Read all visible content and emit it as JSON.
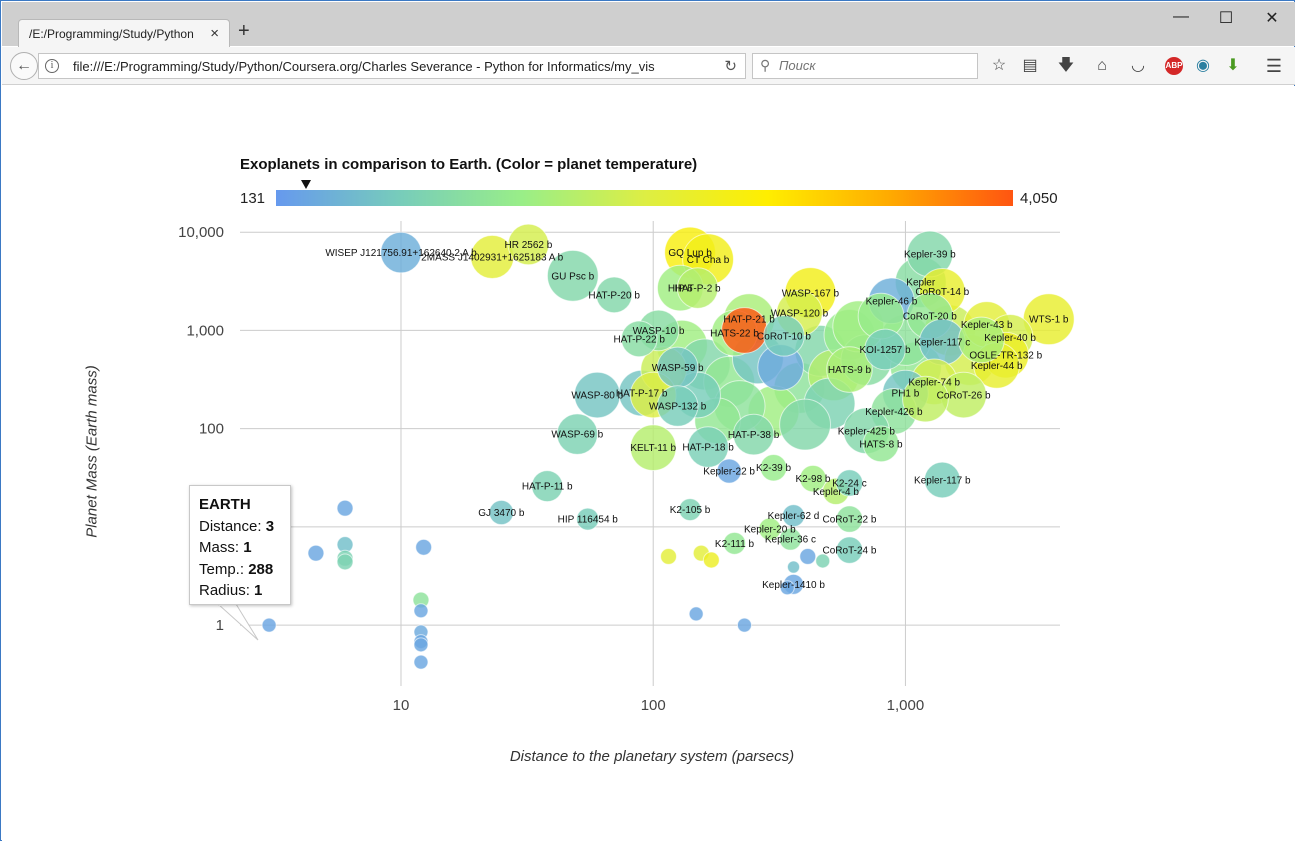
{
  "browser": {
    "tab_title": "/E:/Programming/Study/Python",
    "tab_close": "×",
    "new_tab": "+",
    "url": "file:///E:/Programming/Study/Python/Coursera.org/Charles Severance - Python for Informatics/my_vis",
    "search_placeholder": "Поиск",
    "window": {
      "minimize": "—",
      "maximize": "☐",
      "close": "✕"
    },
    "toolbar_icons": [
      "bookmark-star-icon",
      "reading-list-icon",
      "download-icon",
      "home-icon",
      "pocket-icon",
      "adblock-icon",
      "sync-icon",
      "extension-icon",
      "menu-icon"
    ],
    "abp_label": "ABP"
  },
  "chart_data": {
    "type": "scatter",
    "title": "Exoplanets in comparison to Earth. (Color = planet temperature)",
    "xlabel": "Distance to the planetary system (parsecs)",
    "ylabel": "Planet Mass (Earth mass)",
    "x_scale": "log",
    "y_scale": "log",
    "xlim": [
      2.3,
      4100
    ],
    "ylim": [
      0.24,
      13000
    ],
    "x_ticks": [
      "10",
      "100",
      "1,000"
    ],
    "y_ticks": [
      "1",
      "100",
      "1,000",
      "10,000"
    ],
    "colorbar": {
      "min_label": "131",
      "max_label": "4,050",
      "min": 131,
      "max": 4050,
      "marker_value": 288,
      "colors": [
        "#6699ee",
        "#77ccbb",
        "#99ee88",
        "#ddee44",
        "#ffee00",
        "#ffaa00",
        "#ff5511"
      ]
    },
    "grid": true,
    "points": [
      {
        "name": "EARTH",
        "x": 3,
        "y": 1,
        "t": 288,
        "r": 1,
        "label": false
      },
      {
        "name": "WISEP J121756.91+162640.2 A b",
        "x": 10,
        "y": 6200,
        "t": 400,
        "r": 2.2,
        "label": true
      },
      {
        "name": "2MASS J1402931+1625183 A b",
        "x": 23,
        "y": 5600,
        "t": 2200,
        "r": 2.3,
        "label": true
      },
      {
        "name": "HR 2562 b",
        "x": 32,
        "y": 7500,
        "t": 2000,
        "r": 2.2,
        "label": true
      },
      {
        "name": "GU Psc b",
        "x": 48,
        "y": 3600,
        "t": 1000,
        "r": 2.6,
        "label": true
      },
      {
        "name": "HAT-P-20 b",
        "x": 70,
        "y": 2300,
        "t": 1000,
        "r": 2.0,
        "label": true
      },
      {
        "name": "GQ Lup b",
        "x": 140,
        "y": 6200,
        "t": 2600,
        "r": 2.6,
        "label": true
      },
      {
        "name": "CT Cha b",
        "x": 165,
        "y": 5300,
        "t": 2500,
        "r": 2.6,
        "label": true
      },
      {
        "name": "HIP 6",
        "x": 128,
        "y": 2700,
        "t": 1500,
        "r": 2.4,
        "label": true
      },
      {
        "name": "HAT-P-2 b",
        "x": 150,
        "y": 2700,
        "t": 1700,
        "r": 2.2,
        "label": true
      },
      {
        "name": "WASP-10 b",
        "x": 105,
        "y": 1000,
        "t": 1100,
        "r": 2.2,
        "label": true
      },
      {
        "name": "HAT-P-22 b",
        "x": 88,
        "y": 820,
        "t": 1100,
        "r": 2.0,
        "label": true
      },
      {
        "name": "HAT-P-21 b",
        "x": 240,
        "y": 1300,
        "t": 1600,
        "r": 2.6,
        "label": true
      },
      {
        "name": "HATS-22 b",
        "x": 210,
        "y": 940,
        "t": 1500,
        "r": 2.4,
        "label": true
      },
      {
        "name": "WASP-167 b",
        "x": 420,
        "y": 2400,
        "t": 2500,
        "r": 2.6,
        "label": true
      },
      {
        "name": "WASP-120 b",
        "x": 380,
        "y": 1500,
        "t": 2000,
        "r": 2.4,
        "label": true
      },
      {
        "name": "CoRoT-10 b",
        "x": 330,
        "y": 880,
        "t": 800,
        "r": 2.2,
        "label": true
      },
      {
        "name": "Kepler-39 b",
        "x": 1250,
        "y": 6000,
        "t": 1000,
        "r": 2.4,
        "label": true
      },
      {
        "name": "Kepler",
        "x": 1150,
        "y": 3100,
        "t": 1100,
        "r": 2.6,
        "label": true
      },
      {
        "name": "CoRoT-14 b",
        "x": 1400,
        "y": 2500,
        "t": 2300,
        "r": 2.4,
        "label": true
      },
      {
        "name": "Kepler-46 b",
        "x": 880,
        "y": 2000,
        "t": 400,
        "r": 2.4,
        "label": true
      },
      {
        "name": "CoRoT-20 b",
        "x": 1250,
        "y": 1400,
        "t": 1300,
        "r": 2.4,
        "label": true
      },
      {
        "name": "WTS-1 b",
        "x": 3700,
        "y": 1300,
        "t": 2300,
        "r": 2.6,
        "label": true
      },
      {
        "name": "Kepler-43 b",
        "x": 2100,
        "y": 1150,
        "t": 2200,
        "r": 2.4,
        "label": true
      },
      {
        "name": "Kepler-40 b",
        "x": 2600,
        "y": 850,
        "t": 2000,
        "r": 2.4,
        "label": true
      },
      {
        "name": "Kepler-117 c",
        "x": 1400,
        "y": 760,
        "t": 600,
        "r": 2.4,
        "label": true
      },
      {
        "name": "OGLE-TR-132 b",
        "x": 2500,
        "y": 560,
        "t": 2400,
        "r": 2.4,
        "label": true
      },
      {
        "name": "Kepler-44 b",
        "x": 2300,
        "y": 440,
        "t": 2300,
        "r": 2.4,
        "label": true
      },
      {
        "name": "Kepler-74 b",
        "x": 1300,
        "y": 300,
        "t": 2000,
        "r": 2.4,
        "label": true
      },
      {
        "name": "CoRoT-26 b",
        "x": 1700,
        "y": 220,
        "t": 1800,
        "r": 2.4,
        "label": true
      },
      {
        "name": "KOI-1257 b",
        "x": 830,
        "y": 640,
        "t": 800,
        "r": 2.2,
        "label": true
      },
      {
        "name": "HATS-9 b",
        "x": 600,
        "y": 400,
        "t": 1600,
        "r": 2.4,
        "label": true
      },
      {
        "name": "PH1 b",
        "x": 1000,
        "y": 230,
        "t": 700,
        "r": 2.4,
        "label": true
      },
      {
        "name": "Kepler-426 b",
        "x": 900,
        "y": 150,
        "t": 1200,
        "r": 2.4,
        "label": true
      },
      {
        "name": "Kepler-425 b",
        "x": 700,
        "y": 95,
        "t": 1000,
        "r": 2.4,
        "label": true
      },
      {
        "name": "HATS-8 b",
        "x": 800,
        "y": 70,
        "t": 1300,
        "r": 2.0,
        "label": true
      },
      {
        "name": "Kepler-117 b",
        "x": 1400,
        "y": 30,
        "t": 800,
        "r": 2.0,
        "label": true
      },
      {
        "name": "WASP-80 b",
        "x": 60,
        "y": 220,
        "t": 700,
        "r": 2.4,
        "label": true
      },
      {
        "name": "HAT-P-17 b",
        "x": 90,
        "y": 230,
        "t": 700,
        "r": 2.4,
        "label": true
      },
      {
        "name": "WASP-69 b",
        "x": 50,
        "y": 88,
        "t": 900,
        "r": 2.2,
        "label": true
      },
      {
        "name": "WASP-59 b",
        "x": 125,
        "y": 420,
        "t": 700,
        "r": 2.2,
        "label": true
      },
      {
        "name": "WASP-132 b",
        "x": 125,
        "y": 170,
        "t": 800,
        "r": 2.2,
        "label": true
      },
      {
        "name": "KELT-11 b",
        "x": 100,
        "y": 64,
        "t": 1700,
        "r": 2.4,
        "label": true
      },
      {
        "name": "HAT-P-18 b",
        "x": 165,
        "y": 65,
        "t": 850,
        "r": 2.2,
        "label": true
      },
      {
        "name": "HAT-P-38 b",
        "x": 250,
        "y": 87,
        "t": 1000,
        "r": 2.2,
        "label": true
      },
      {
        "name": "HAT-P-11 b",
        "x": 38,
        "y": 26,
        "t": 900,
        "r": 1.8,
        "label": true
      },
      {
        "name": "GJ 3470 b",
        "x": 25,
        "y": 14,
        "t": 650,
        "r": 1.5,
        "label": true
      },
      {
        "name": "HIP 116454 b",
        "x": 55,
        "y": 12,
        "t": 800,
        "r": 1.4,
        "label": true
      },
      {
        "name": "Kepler-22 b",
        "x": 200,
        "y": 37,
        "t": 300,
        "r": 1.5,
        "label": true
      },
      {
        "name": "K2-39 b",
        "x": 300,
        "y": 40,
        "t": 1400,
        "r": 1.6,
        "label": true
      },
      {
        "name": "K2-98 b",
        "x": 430,
        "y": 31,
        "t": 1500,
        "r": 1.6,
        "label": true
      },
      {
        "name": "Kepler-4 b",
        "x": 530,
        "y": 23,
        "t": 1700,
        "r": 1.6,
        "label": true
      },
      {
        "name": "K2-24 c",
        "x": 600,
        "y": 28,
        "t": 800,
        "r": 1.6,
        "label": true
      },
      {
        "name": "K2-105 b",
        "x": 140,
        "y": 15,
        "t": 900,
        "r": 1.4,
        "label": true
      },
      {
        "name": "Kepler-62 d",
        "x": 360,
        "y": 13,
        "t": 600,
        "r": 1.4,
        "label": true
      },
      {
        "name": "CoRoT-22 b",
        "x": 600,
        "y": 12,
        "t": 1200,
        "r": 1.6,
        "label": true
      },
      {
        "name": "Kepler-20 b",
        "x": 290,
        "y": 9.5,
        "t": 1500,
        "r": 1.4,
        "label": true
      },
      {
        "name": "K2-111 b",
        "x": 210,
        "y": 6.8,
        "t": 1300,
        "r": 1.4,
        "label": true
      },
      {
        "name": "Kepler-36 c",
        "x": 350,
        "y": 7.5,
        "t": 1200,
        "r": 1.4,
        "label": true
      },
      {
        "name": "CoRoT-24 b",
        "x": 600,
        "y": 5.8,
        "t": 800,
        "r": 1.6,
        "label": true
      },
      {
        "name": "Kepler-1410 b",
        "x": 360,
        "y": 2.6,
        "t": 300,
        "r": 1.3,
        "label": true
      },
      {
        "name": "",
        "x": 4.6,
        "y": 5.4,
        "t": 300,
        "r": 1.1,
        "label": false
      },
      {
        "name": "",
        "x": 6,
        "y": 15.5,
        "t": 300,
        "r": 1.1,
        "label": false
      },
      {
        "name": "",
        "x": 6,
        "y": 6.6,
        "t": 600,
        "r": 1.1,
        "label": false
      },
      {
        "name": "",
        "x": 6,
        "y": 4.8,
        "t": 900,
        "r": 1.1,
        "label": false
      },
      {
        "name": "",
        "x": 6,
        "y": 4.4,
        "t": 900,
        "r": 1.1,
        "label": false
      },
      {
        "name": "",
        "x": 12.3,
        "y": 6.2,
        "t": 300,
        "r": 1.1,
        "label": false
      },
      {
        "name": "",
        "x": 12,
        "y": 1.8,
        "t": 1200,
        "r": 1.1,
        "label": false
      },
      {
        "name": "",
        "x": 12,
        "y": 1.4,
        "t": 300,
        "r": 1.0,
        "label": false
      },
      {
        "name": "",
        "x": 12,
        "y": 0.85,
        "t": 350,
        "r": 1.0,
        "label": false
      },
      {
        "name": "",
        "x": 12,
        "y": 0.68,
        "t": 300,
        "r": 1.0,
        "label": false
      },
      {
        "name": "",
        "x": 12,
        "y": 0.63,
        "t": 300,
        "r": 1.0,
        "label": false
      },
      {
        "name": "",
        "x": 12,
        "y": 0.42,
        "t": 300,
        "r": 1.0,
        "label": false
      },
      {
        "name": "",
        "x": 115,
        "y": 5.0,
        "t": 2200,
        "r": 1.1,
        "label": false
      },
      {
        "name": "",
        "x": 155,
        "y": 5.4,
        "t": 2200,
        "r": 1.1,
        "label": false
      },
      {
        "name": "",
        "x": 170,
        "y": 4.6,
        "t": 2400,
        "r": 1.1,
        "label": false
      },
      {
        "name": "",
        "x": 148,
        "y": 1.3,
        "t": 300,
        "r": 1.0,
        "label": false
      },
      {
        "name": "",
        "x": 230,
        "y": 1.0,
        "t": 300,
        "r": 1.0,
        "label": false
      },
      {
        "name": "",
        "x": 410,
        "y": 5.0,
        "t": 300,
        "r": 1.1,
        "label": false
      },
      {
        "name": "",
        "x": 360,
        "y": 3.9,
        "t": 600,
        "r": 0.9,
        "label": false
      },
      {
        "name": "",
        "x": 340,
        "y": 2.4,
        "t": 300,
        "r": 1.0,
        "label": false
      },
      {
        "name": "",
        "x": 470,
        "y": 4.5,
        "t": 900,
        "r": 1.0,
        "label": false
      },
      {
        "name": "",
        "x": 130,
        "y": 700,
        "t": 1500,
        "r": 2.6,
        "label": false
      },
      {
        "name": "",
        "x": 160,
        "y": 450,
        "t": 1000,
        "r": 2.6,
        "label": false
      },
      {
        "name": "",
        "x": 200,
        "y": 300,
        "t": 1300,
        "r": 2.6,
        "label": false
      },
      {
        "name": "",
        "x": 260,
        "y": 520,
        "t": 700,
        "r": 2.6,
        "label": false
      },
      {
        "name": "",
        "x": 320,
        "y": 420,
        "t": 350,
        "r": 2.4,
        "label": false
      },
      {
        "name": "",
        "x": 380,
        "y": 260,
        "t": 1200,
        "r": 2.6,
        "label": false
      },
      {
        "name": "",
        "x": 460,
        "y": 620,
        "t": 1000,
        "r": 2.6,
        "label": false
      },
      {
        "name": "",
        "x": 520,
        "y": 350,
        "t": 1700,
        "r": 2.6,
        "label": false
      },
      {
        "name": "",
        "x": 600,
        "y": 900,
        "t": 1400,
        "r": 2.6,
        "label": false
      },
      {
        "name": "",
        "x": 700,
        "y": 500,
        "t": 1100,
        "r": 2.6,
        "label": false
      },
      {
        "name": "",
        "x": 500,
        "y": 180,
        "t": 900,
        "r": 2.6,
        "label": false
      },
      {
        "name": "",
        "x": 300,
        "y": 150,
        "t": 1500,
        "r": 2.6,
        "label": false
      },
      {
        "name": "",
        "x": 220,
        "y": 170,
        "t": 1200,
        "r": 2.6,
        "label": false
      },
      {
        "name": "",
        "x": 180,
        "y": 120,
        "t": 1300,
        "r": 2.4,
        "label": false
      },
      {
        "name": "",
        "x": 150,
        "y": 220,
        "t": 800,
        "r": 2.4,
        "label": false
      },
      {
        "name": "",
        "x": 400,
        "y": 110,
        "t": 1000,
        "r": 2.6,
        "label": false
      },
      {
        "name": "",
        "x": 1100,
        "y": 420,
        "t": 1300,
        "r": 2.6,
        "label": false
      },
      {
        "name": "",
        "x": 1500,
        "y": 1000,
        "t": 1900,
        "r": 2.6,
        "label": false
      },
      {
        "name": "",
        "x": 1800,
        "y": 500,
        "t": 2000,
        "r": 2.6,
        "label": false
      },
      {
        "name": "",
        "x": 2000,
        "y": 800,
        "t": 1600,
        "r": 2.4,
        "label": false
      },
      {
        "name": "",
        "x": 1000,
        "y": 800,
        "t": 1200,
        "r": 2.6,
        "label": false
      },
      {
        "name": "",
        "x": 1200,
        "y": 200,
        "t": 1800,
        "r": 2.4,
        "label": false
      },
      {
        "name": "",
        "x": 230,
        "y": 1000,
        "t": 4050,
        "r": 2.4,
        "label": false
      },
      {
        "name": "",
        "x": 110,
        "y": 400,
        "t": 1900,
        "r": 2.4,
        "label": false
      },
      {
        "name": "",
        "x": 100,
        "y": 220,
        "t": 2100,
        "r": 2.4,
        "label": false
      },
      {
        "name": "",
        "x": 650,
        "y": 1100,
        "t": 1500,
        "r": 2.6,
        "label": false
      },
      {
        "name": "",
        "x": 800,
        "y": 1400,
        "t": 1400,
        "r": 2.4,
        "label": false
      }
    ],
    "tooltip": {
      "name": "EARTH",
      "rows": [
        {
          "label": "Distance:",
          "value": "3"
        },
        {
          "label": "Mass:",
          "value": "1"
        },
        {
          "label": "Temp.:",
          "value": "288"
        },
        {
          "label": "Radius:",
          "value": "1"
        }
      ]
    }
  }
}
